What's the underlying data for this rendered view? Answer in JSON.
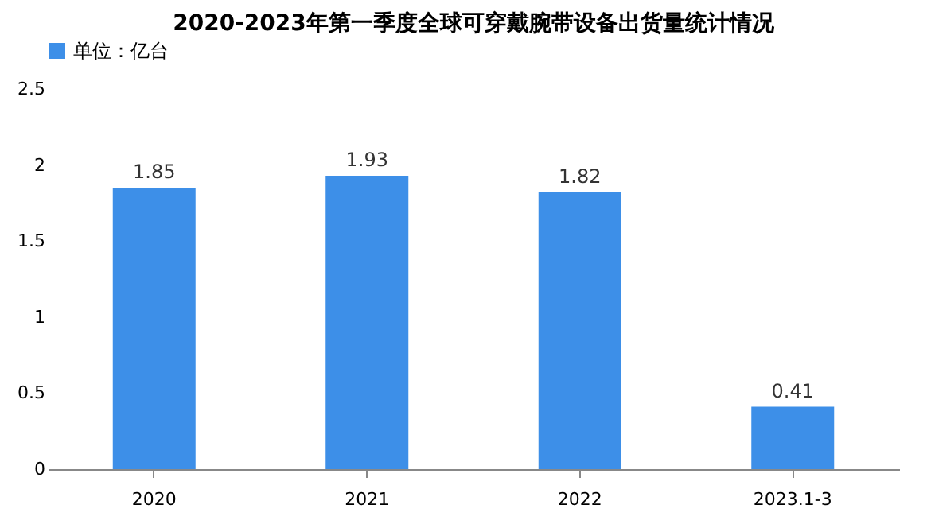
{
  "chart_data": {
    "type": "bar",
    "title": "2020-2023年第一季度全球可穿戴腕带设备出货量统计情况",
    "categories": [
      "2020",
      "2021",
      "2022",
      "2023.1-3"
    ],
    "series": [
      {
        "name": "单位：亿台",
        "color": "#3d8fe8",
        "values": [
          1.85,
          1.93,
          1.82,
          0.41
        ]
      }
    ],
    "ylim": [
      0,
      2.5
    ],
    "yticks": [
      0,
      0.5,
      1,
      1.5,
      2,
      2.5
    ],
    "grid": false,
    "legend": "top",
    "data_labels": true
  }
}
